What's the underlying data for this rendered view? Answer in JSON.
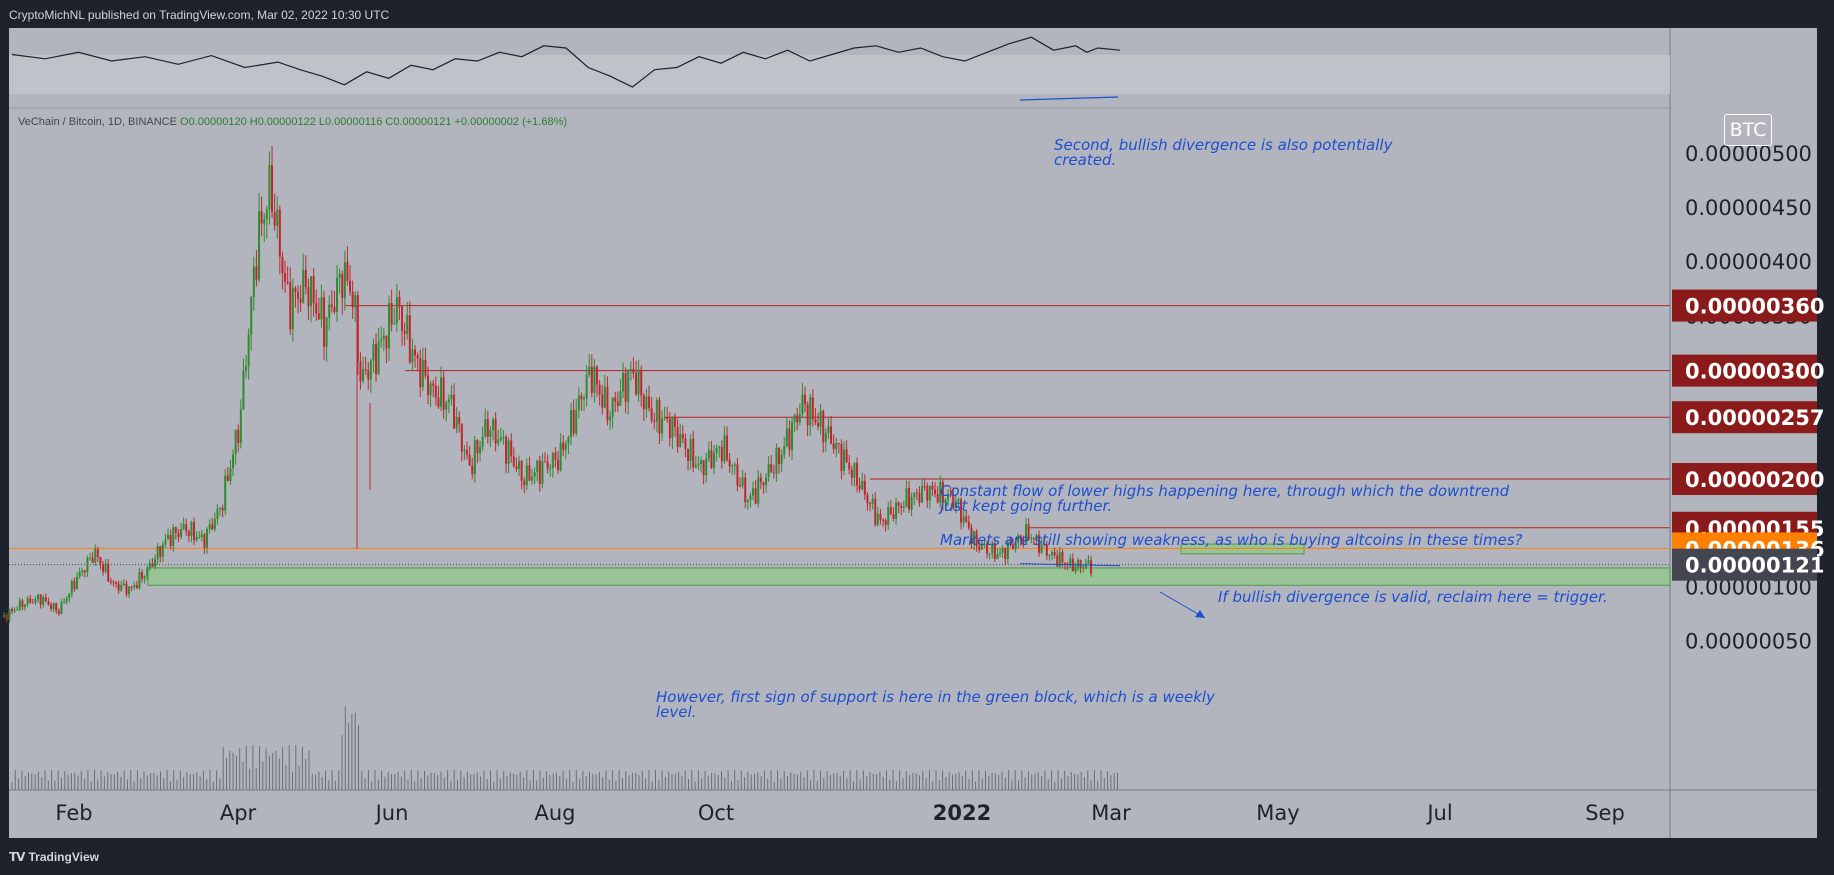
{
  "header": {
    "publisher": "CryptoMichNL published on TradingView.com, Mar 02, 2022 10:30 UTC"
  },
  "footer": {
    "brand": "TradingView",
    "brand_mark": "tradingview-logo-icon"
  },
  "legend": {
    "symbol": "VeChain / Bitcoin, 1D, BINANCE",
    "open": "O0.00000120",
    "high": "H0.00000122",
    "low": "L0.00000116",
    "close": "C0.00000121",
    "change": "+0.00000002 (+1.68%)"
  },
  "currency_badge": "BTC",
  "colors": {
    "background": "#b2b5be",
    "up": "#2e8b2e",
    "down": "#c0262d",
    "resistance": "#b22222",
    "support_zone": "#8fc98a",
    "current_orange": "#ff7f00",
    "current_dark": "#434651",
    "annotation": "#1e4fd0"
  },
  "chart_data": {
    "type": "candlestick",
    "title": "",
    "xlabel": "",
    "ylabel": "",
    "x_ticks": [
      "Feb",
      "Apr",
      "Jun",
      "Aug",
      "Oct",
      "2022",
      "Mar",
      "May",
      "Jul",
      "Sep"
    ],
    "y_ticks": [
      "0.00000050",
      "0.00000100",
      "0.00000150",
      "0.00000200",
      "0.00000250",
      "0.00000300",
      "0.00000350",
      "0.00000400",
      "0.00000450",
      "0.00000500"
    ],
    "ylim": [
      2e-07,
      5.1e-06
    ],
    "price_series": [
      {
        "d": "2021-01-05",
        "v": 7.3e-07
      },
      {
        "d": "2021-01-12",
        "v": 8.5e-07
      },
      {
        "d": "2021-01-19",
        "v": 9e-07
      },
      {
        "d": "2021-01-26",
        "v": 7.8e-07
      },
      {
        "d": "2021-02-02",
        "v": 1.08e-06
      },
      {
        "d": "2021-02-09",
        "v": 1.32e-06
      },
      {
        "d": "2021-02-16",
        "v": 1.03e-06
      },
      {
        "d": "2021-02-23",
        "v": 9.8e-07
      },
      {
        "d": "2021-03-02",
        "v": 1.18e-06
      },
      {
        "d": "2021-03-09",
        "v": 1.45e-06
      },
      {
        "d": "2021-03-16",
        "v": 1.55e-06
      },
      {
        "d": "2021-03-23",
        "v": 1.43e-06
      },
      {
        "d": "2021-03-30",
        "v": 1.75e-06
      },
      {
        "d": "2021-04-06",
        "v": 2.5e-06
      },
      {
        "d": "2021-04-13",
        "v": 4.2e-06
      },
      {
        "d": "2021-04-18",
        "v": 4.7e-06
      },
      {
        "d": "2021-04-25",
        "v": 3.6e-06
      },
      {
        "d": "2021-05-02",
        "v": 3.8e-06
      },
      {
        "d": "2021-05-09",
        "v": 3.4e-06
      },
      {
        "d": "2021-05-16",
        "v": 3.9e-06
      },
      {
        "d": "2021-05-20",
        "v": 3.7e-06
      },
      {
        "d": "2021-05-23",
        "v": 2.9e-06
      },
      {
        "d": "2021-05-30",
        "v": 3.2e-06
      },
      {
        "d": "2021-06-06",
        "v": 3.6e-06
      },
      {
        "d": "2021-06-13",
        "v": 3.1e-06
      },
      {
        "d": "2021-06-20",
        "v": 2.8e-06
      },
      {
        "d": "2021-06-27",
        "v": 2.7e-06
      },
      {
        "d": "2021-07-04",
        "v": 2.1e-06
      },
      {
        "d": "2021-07-11",
        "v": 2.5e-06
      },
      {
        "d": "2021-07-18",
        "v": 2.3e-06
      },
      {
        "d": "2021-07-25",
        "v": 2e-06
      },
      {
        "d": "2021-08-08",
        "v": 2.2e-06
      },
      {
        "d": "2021-08-20",
        "v": 3e-06
      },
      {
        "d": "2021-08-27",
        "v": 2.6e-06
      },
      {
        "d": "2021-09-05",
        "v": 3e-06
      },
      {
        "d": "2021-09-12",
        "v": 2.6e-06
      },
      {
        "d": "2021-09-20",
        "v": 2.5e-06
      },
      {
        "d": "2021-10-01",
        "v": 2.1e-06
      },
      {
        "d": "2021-10-10",
        "v": 2.3e-06
      },
      {
        "d": "2021-10-20",
        "v": 1.8e-06
      },
      {
        "d": "2021-11-01",
        "v": 2.2e-06
      },
      {
        "d": "2021-11-10",
        "v": 2.7e-06
      },
      {
        "d": "2021-11-20",
        "v": 2.4e-06
      },
      {
        "d": "2021-12-01",
        "v": 2e-06
      },
      {
        "d": "2021-12-10",
        "v": 1.6e-06
      },
      {
        "d": "2021-12-20",
        "v": 1.8e-06
      },
      {
        "d": "2021-12-28",
        "v": 1.9e-06
      },
      {
        "d": "2022-01-08",
        "v": 1.8e-06
      },
      {
        "d": "2022-01-16",
        "v": 1.4e-06
      },
      {
        "d": "2022-01-25",
        "v": 1.3e-06
      },
      {
        "d": "2022-02-05",
        "v": 1.5e-06
      },
      {
        "d": "2022-02-14",
        "v": 1.3e-06
      },
      {
        "d": "2022-02-22",
        "v": 1.2e-06
      },
      {
        "d": "2022-03-02",
        "v": 1.21e-06
      }
    ],
    "indicator_series": [
      [
        0,
        42
      ],
      [
        0.03,
        38
      ],
      [
        0.06,
        44
      ],
      [
        0.09,
        36
      ],
      [
        0.12,
        40
      ],
      [
        0.15,
        33
      ],
      [
        0.18,
        41
      ],
      [
        0.21,
        30
      ],
      [
        0.24,
        35
      ],
      [
        0.26,
        28
      ],
      [
        0.28,
        22
      ],
      [
        0.3,
        14
      ],
      [
        0.32,
        26
      ],
      [
        0.34,
        20
      ],
      [
        0.36,
        32
      ],
      [
        0.38,
        28
      ],
      [
        0.4,
        38
      ],
      [
        0.42,
        36
      ],
      [
        0.44,
        44
      ],
      [
        0.46,
        40
      ],
      [
        0.48,
        50
      ],
      [
        0.5,
        48
      ],
      [
        0.52,
        30
      ],
      [
        0.54,
        22
      ],
      [
        0.56,
        12
      ],
      [
        0.58,
        28
      ],
      [
        0.6,
        30
      ],
      [
        0.62,
        40
      ],
      [
        0.64,
        34
      ],
      [
        0.66,
        44
      ],
      [
        0.68,
        38
      ],
      [
        0.7,
        46
      ],
      [
        0.72,
        36
      ],
      [
        0.74,
        42
      ],
      [
        0.76,
        48
      ],
      [
        0.78,
        50
      ],
      [
        0.8,
        44
      ],
      [
        0.82,
        48
      ],
      [
        0.84,
        40
      ],
      [
        0.86,
        36
      ],
      [
        0.88,
        44
      ],
      [
        0.9,
        52
      ],
      [
        0.92,
        58
      ],
      [
        0.94,
        46
      ],
      [
        0.96,
        50
      ],
      [
        0.97,
        44
      ],
      [
        0.98,
        48
      ],
      [
        1.0,
        46
      ]
    ],
    "horizontal_levels": [
      {
        "price": 3.6e-06,
        "label": "0.00000360",
        "color": "#8b1a1a"
      },
      {
        "price": 3e-06,
        "label": "0.00000300",
        "color": "#8b1a1a"
      },
      {
        "price": 2.57e-06,
        "label": "0.00000257",
        "color": "#8b1a1a"
      },
      {
        "price": 2e-06,
        "label": "0.00000200",
        "color": "#8b1a1a"
      },
      {
        "price": 1.55e-06,
        "label": "0.00000155",
        "color": "#8b1a1a"
      },
      {
        "price": 1.36e-06,
        "label": "0.00000136",
        "color": "#ff7f00"
      },
      {
        "price": 1.21e-06,
        "label": "0.00000121",
        "color": "#434651"
      }
    ],
    "zones": [
      {
        "name": "weekly-support-zone",
        "from": 1.02e-06,
        "to": 1.18e-06
      },
      {
        "name": "reclaim-target-zone",
        "from": 1.31e-06,
        "to": 1.4e-06
      }
    ],
    "annotations": [
      {
        "text": "Second, bullish divergence is also potentially\ncreated."
      },
      {
        "text": "Constant flow of lower highs happening here, through which the downtrend\njust kept going further."
      },
      {
        "text": "Markets are still showing weakness, as who is buying altcoins in these times?"
      },
      {
        "text": "If bullish divergence is valid, reclaim here = trigger."
      },
      {
        "text": "However, first sign of support is here in the green block, which is a weekly\nlevel."
      }
    ]
  }
}
